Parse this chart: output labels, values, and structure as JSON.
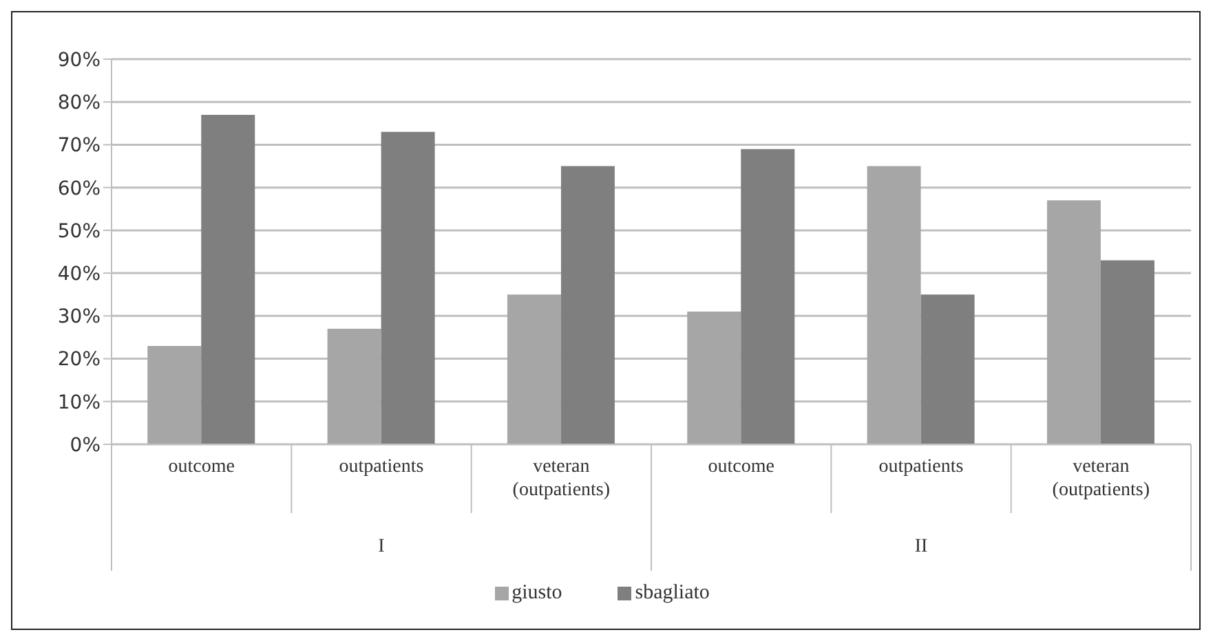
{
  "chart_data": {
    "type": "bar",
    "categories": [
      "outcome",
      "outpatients",
      "veteran (outpatients)",
      "outcome",
      "outpatients",
      "veteran (outpatients)"
    ],
    "series": [
      {
        "name": "giusto",
        "color": "#a6a6a6",
        "values": [
          23,
          27,
          35,
          31,
          65,
          57
        ]
      },
      {
        "name": "sbagliato",
        "color": "#7f7f7f",
        "values": [
          77,
          73,
          65,
          69,
          35,
          43
        ]
      }
    ],
    "annotations": [
      "I",
      "II"
    ],
    "ylim": [
      0,
      90
    ],
    "yticks": [
      {
        "value": 0,
        "label": "0%"
      },
      {
        "value": 10,
        "label": "10%"
      },
      {
        "value": 20,
        "label": "20%"
      },
      {
        "value": 30,
        "label": "30%"
      },
      {
        "value": 40,
        "label": "40%"
      },
      {
        "value": 50,
        "label": "50%"
      },
      {
        "value": 60,
        "label": "60%"
      },
      {
        "value": 70,
        "label": "70%"
      },
      {
        "value": 80,
        "label": "80%"
      },
      {
        "value": 90,
        "label": "90%"
      }
    ],
    "grid": "y",
    "legend": "bottom"
  }
}
